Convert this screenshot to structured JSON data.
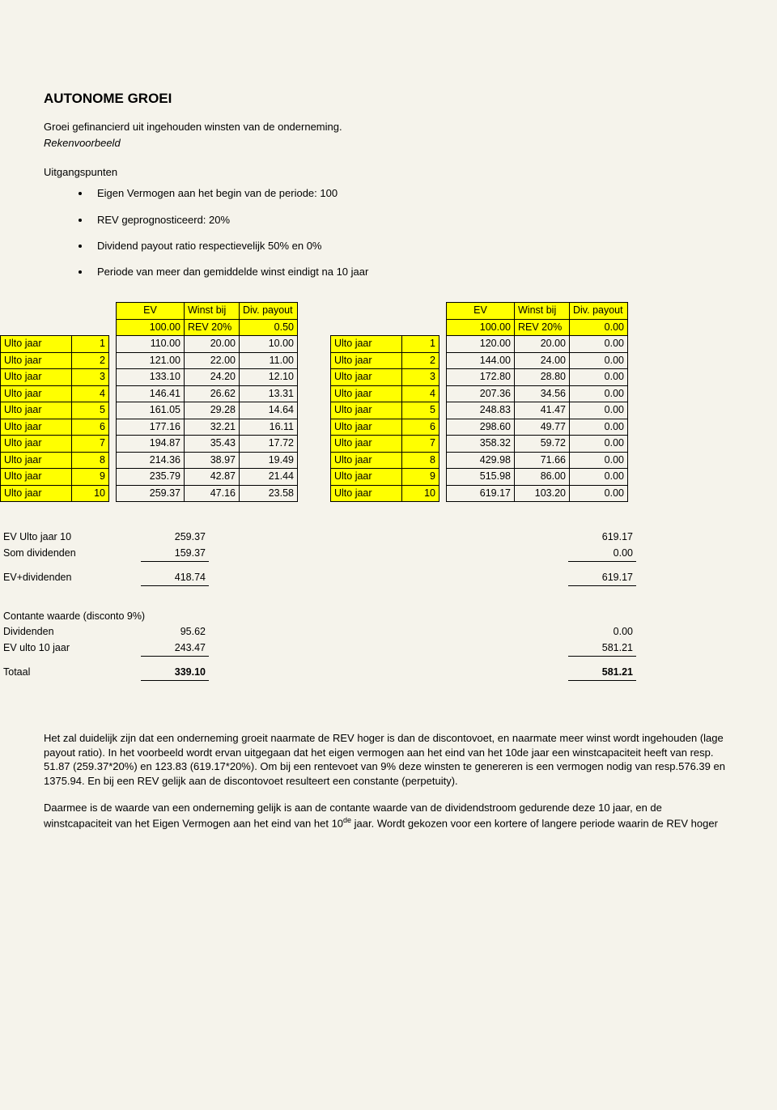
{
  "heading": "AUTONOME GROEI",
  "intro1": "Groei gefinancierd uit ingehouden winsten van de onderneming.",
  "intro2": "Rekenvoorbeeld",
  "uitgangspunten_label": "Uitgangspunten",
  "bullets": [
    "Eigen Vermogen aan het begin van de periode: 100",
    "REV geprognosticeerd: 20%",
    "Dividend payout ratio respectievelijk 50% en 0%",
    "Periode van meer dan gemiddelde winst eindigt na 10 jaar"
  ],
  "headers": {
    "ev": "EV",
    "winst": "Winst bij",
    "div": "Div. payout",
    "ev_val": "100.00",
    "rev": "REV 20%"
  },
  "table_left": {
    "payout": "0.50",
    "rows": [
      {
        "lbl": "Ulto jaar",
        "n": "1",
        "ev": "110.00",
        "w": "20.00",
        "d": "10.00"
      },
      {
        "lbl": "Ulto jaar",
        "n": "2",
        "ev": "121.00",
        "w": "22.00",
        "d": "11.00"
      },
      {
        "lbl": "Ulto jaar",
        "n": "3",
        "ev": "133.10",
        "w": "24.20",
        "d": "12.10"
      },
      {
        "lbl": "Ulto jaar",
        "n": "4",
        "ev": "146.41",
        "w": "26.62",
        "d": "13.31"
      },
      {
        "lbl": "Ulto jaar",
        "n": "5",
        "ev": "161.05",
        "w": "29.28",
        "d": "14.64"
      },
      {
        "lbl": "Ulto jaar",
        "n": "6",
        "ev": "177.16",
        "w": "32.21",
        "d": "16.11"
      },
      {
        "lbl": "Ulto jaar",
        "n": "7",
        "ev": "194.87",
        "w": "35.43",
        "d": "17.72"
      },
      {
        "lbl": "Ulto jaar",
        "n": "8",
        "ev": "214.36",
        "w": "38.97",
        "d": "19.49"
      },
      {
        "lbl": "Ulto jaar",
        "n": "9",
        "ev": "235.79",
        "w": "42.87",
        "d": "21.44"
      },
      {
        "lbl": "Ulto jaar",
        "n": "10",
        "ev": "259.37",
        "w": "47.16",
        "d": "23.58"
      }
    ]
  },
  "table_right": {
    "payout": "0.00",
    "rows": [
      {
        "lbl": "Ulto jaar",
        "n": "1",
        "ev": "120.00",
        "w": "20.00",
        "d": "0.00"
      },
      {
        "lbl": "Ulto jaar",
        "n": "2",
        "ev": "144.00",
        "w": "24.00",
        "d": "0.00"
      },
      {
        "lbl": "Ulto jaar",
        "n": "3",
        "ev": "172.80",
        "w": "28.80",
        "d": "0.00"
      },
      {
        "lbl": "Ulto jaar",
        "n": "4",
        "ev": "207.36",
        "w": "34.56",
        "d": "0.00"
      },
      {
        "lbl": "Ulto jaar",
        "n": "5",
        "ev": "248.83",
        "w": "41.47",
        "d": "0.00"
      },
      {
        "lbl": "Ulto jaar",
        "n": "6",
        "ev": "298.60",
        "w": "49.77",
        "d": "0.00"
      },
      {
        "lbl": "Ulto jaar",
        "n": "7",
        "ev": "358.32",
        "w": "59.72",
        "d": "0.00"
      },
      {
        "lbl": "Ulto jaar",
        "n": "8",
        "ev": "429.98",
        "w": "71.66",
        "d": "0.00"
      },
      {
        "lbl": "Ulto jaar",
        "n": "9",
        "ev": "515.98",
        "w": "86.00",
        "d": "0.00"
      },
      {
        "lbl": "Ulto jaar",
        "n": "10",
        "ev": "619.17",
        "w": "103.20",
        "d": "0.00"
      }
    ]
  },
  "summary": {
    "r1": {
      "label": "EV Ulto jaar 10",
      "l": "259.37",
      "r": "619.17"
    },
    "r2": {
      "label": "Som dividenden",
      "l": "159.37",
      "r": "0.00"
    },
    "r3": {
      "label": "EV+dividenden",
      "l": "418.74",
      "r": "619.17"
    },
    "cw_label": "Contante waarde (disconto 9%)",
    "r4": {
      "label": "Dividenden",
      "l": "95.62",
      "r": "0.00"
    },
    "r5": {
      "label": "EV ulto 10 jaar",
      "l": "243.47",
      "r": "581.21"
    },
    "r6": {
      "label": "Totaal",
      "l": "339.10",
      "r": "581.21"
    }
  },
  "para1": "Het zal duidelijk zijn dat een onderneming groeit naarmate de REV hoger is dan de discontovoet, en naarmate meer winst wordt ingehouden (lage payout ratio). In het voorbeeld wordt ervan uitgegaan dat het eigen vermogen aan het eind van het 10de jaar een winstcapaciteit heeft van resp. 51.87 (259.37*20%) en 123.83 (619.17*20%). Om bij een rentevoet van 9% deze winsten te genereren is een vermogen nodig van resp.576.39 en 1375.94. En bij een REV gelijk aan de discontovoet resulteert een constante (perpetuity).",
  "para2_a": "Daarmee is de waarde van een onderneming gelijk is aan de contante waarde van de dividendstroom gedurende deze 10 jaar, en de winstcapaciteit van het Eigen Vermogen aan het eind van het 10",
  "para2_sup": "de",
  "para2_b": " jaar. Wordt gekozen voor een kortere of langere periode waarin de REV hoger"
}
